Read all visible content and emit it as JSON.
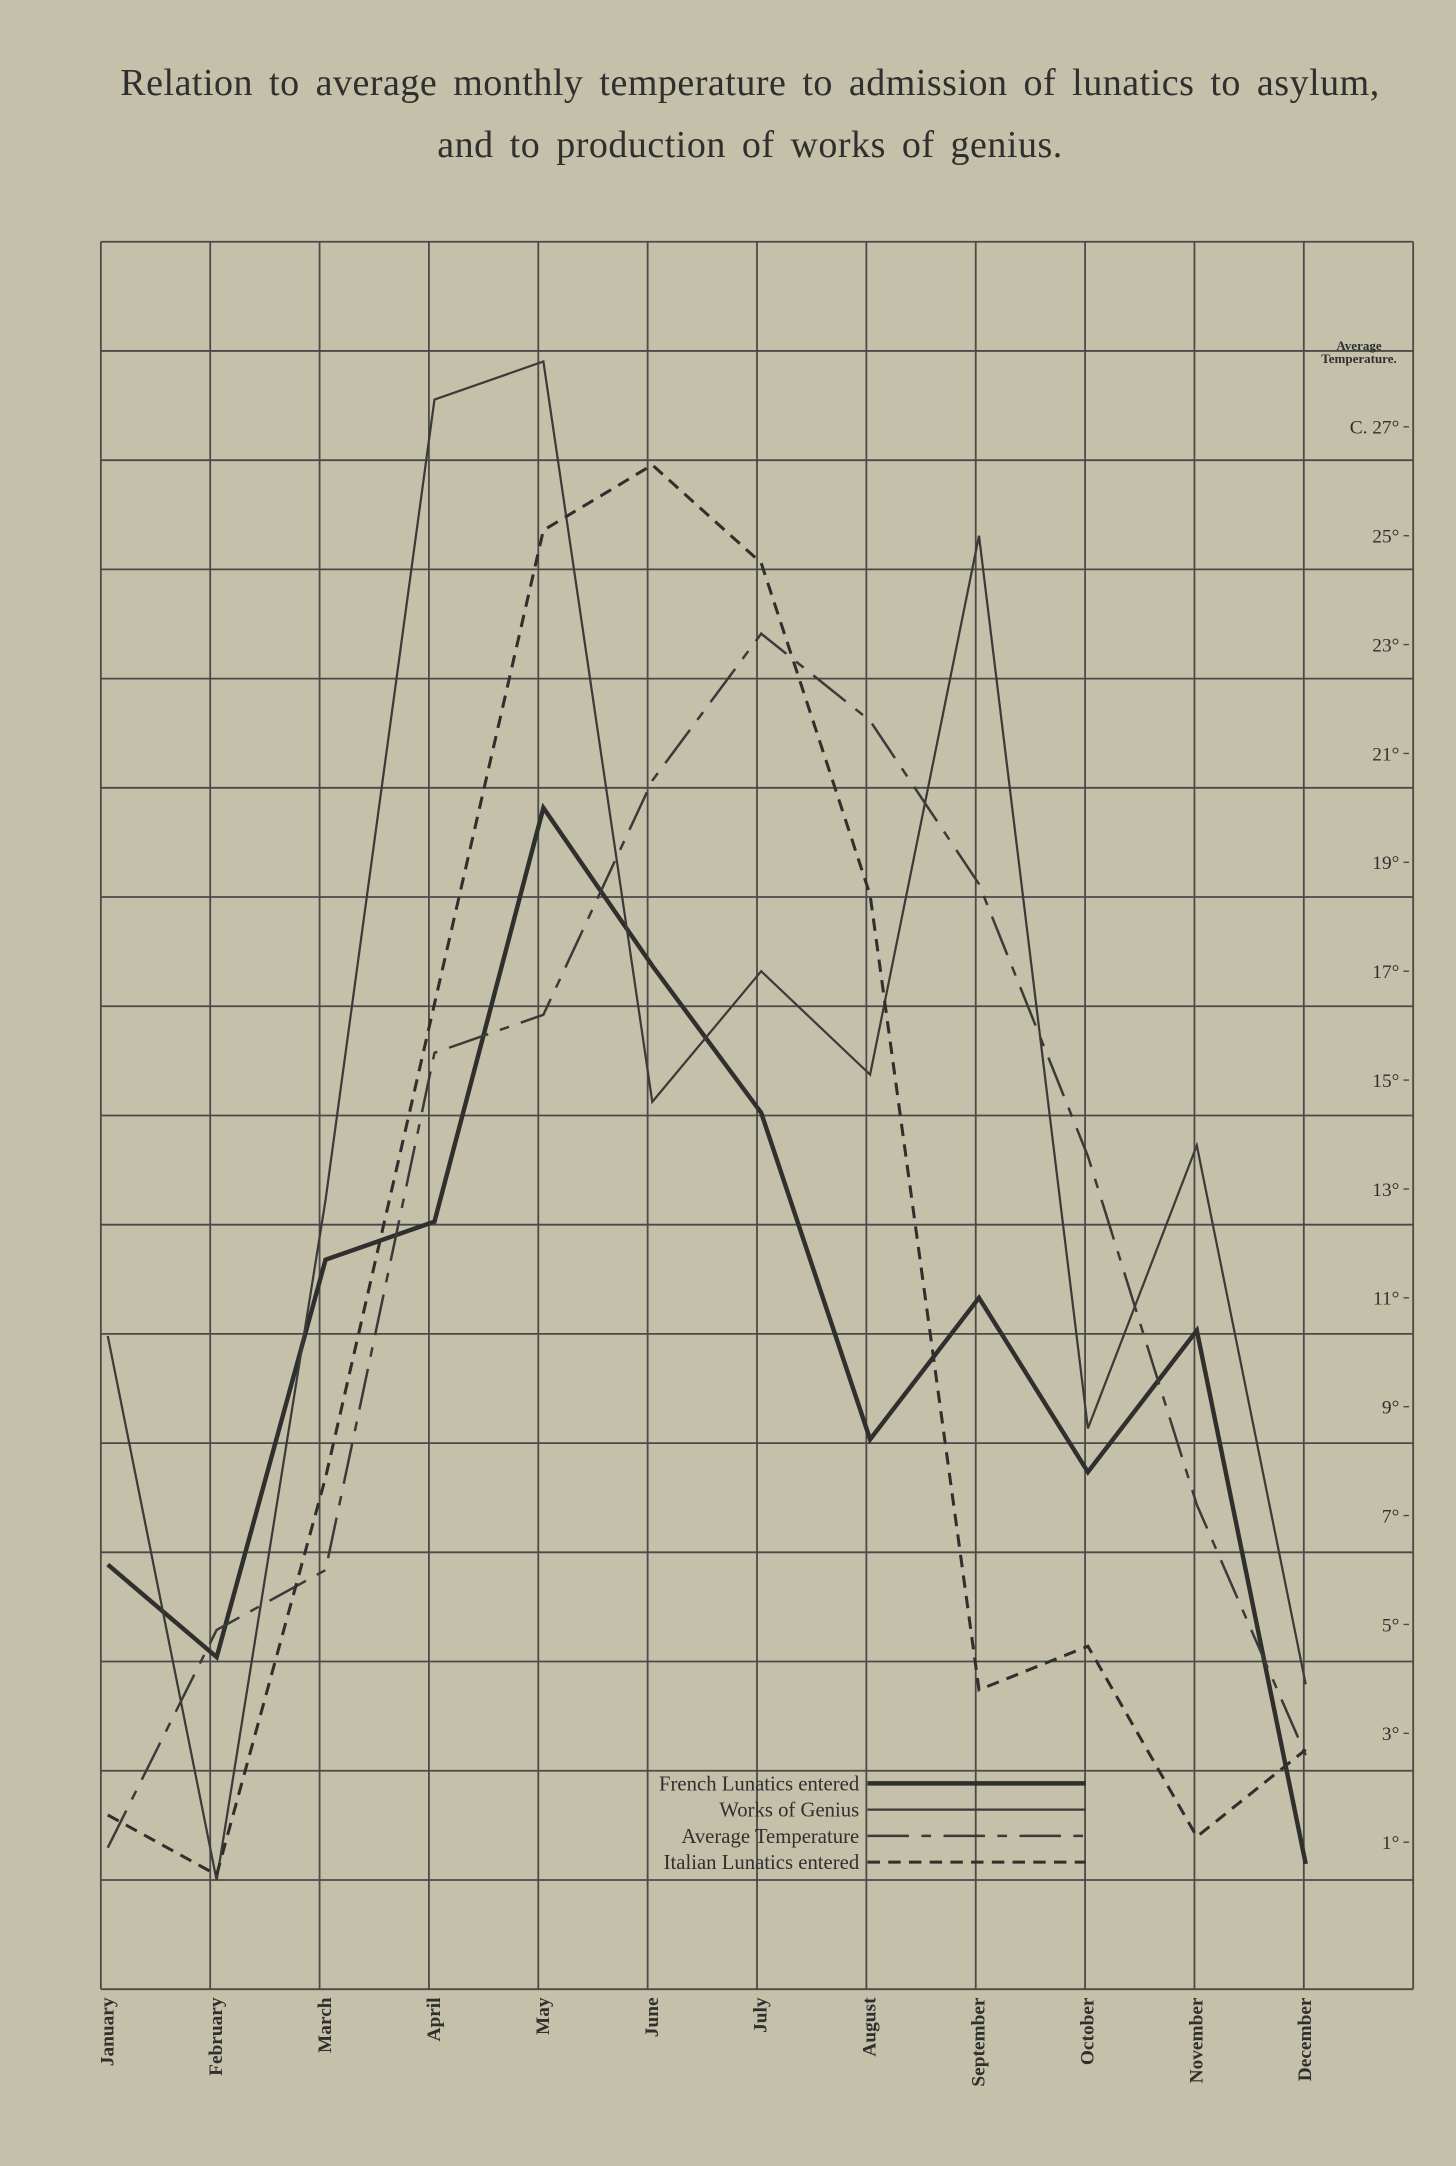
{
  "chart_data": {
    "type": "line",
    "title": "Relation to average monthly temperature to admission of lunatics to asylum, and to production of works of genius.",
    "ylabel": "Average Temperature.",
    "categories": [
      "January",
      "February",
      "March",
      "April",
      "May",
      "June",
      "July",
      "August",
      "September",
      "October",
      "November",
      "December"
    ],
    "series": [
      {
        "name": "French Lunatics entered",
        "color": "#2f2f2d",
        "dash": "solid",
        "linewidth": 3.2,
        "values": [
          6.1,
          4.4,
          11.7,
          12.4,
          20.0,
          17.1,
          14.4,
          8.4,
          11.0,
          7.8,
          10.4,
          0.6
        ]
      },
      {
        "name": "Works of Genius",
        "color": "#3a3a38",
        "dash": "solid",
        "linewidth": 1.6,
        "values": [
          10.3,
          0.3,
          12.8,
          27.5,
          28.2,
          14.6,
          17.0,
          15.1,
          25.0,
          8.6,
          13.8,
          3.9
        ]
      },
      {
        "name": "Average Temperature",
        "color": "#3a3a38",
        "dash": "dashdot",
        "linewidth": 1.8,
        "values": [
          0.9,
          4.9,
          6.0,
          15.5,
          16.2,
          20.5,
          23.2,
          21.6,
          18.6,
          13.6,
          7.2,
          2.6
        ]
      },
      {
        "name": "Italian Lunatics entered",
        "color": "#2f2f2d",
        "dash": "dashed",
        "linewidth": 2.2,
        "values": [
          1.5,
          0.4,
          7.7,
          16.4,
          25.1,
          26.3,
          24.5,
          18.4,
          3.8,
          4.6,
          1.1,
          2.7
        ]
      }
    ],
    "ylim": [
      -1.7,
      30.4
    ],
    "yticks": [
      {
        "value": 27,
        "label": "C. 27°"
      },
      {
        "value": 25,
        "label": "25°"
      },
      {
        "value": 23,
        "label": "23°"
      },
      {
        "value": 21,
        "label": "21°"
      },
      {
        "value": 19,
        "label": "19°"
      },
      {
        "value": 17,
        "label": "17°"
      },
      {
        "value": 15,
        "label": "15°"
      },
      {
        "value": 13,
        "label": "13°"
      },
      {
        "value": 11,
        "label": "11°"
      },
      {
        "value": 9,
        "label": "9°"
      },
      {
        "value": 7,
        "label": "7°"
      },
      {
        "value": 5,
        "label": "5°"
      },
      {
        "value": 3,
        "label": "3°"
      },
      {
        "value": 1,
        "label": "1°"
      }
    ],
    "grid": true,
    "legend": "bottom-center"
  }
}
